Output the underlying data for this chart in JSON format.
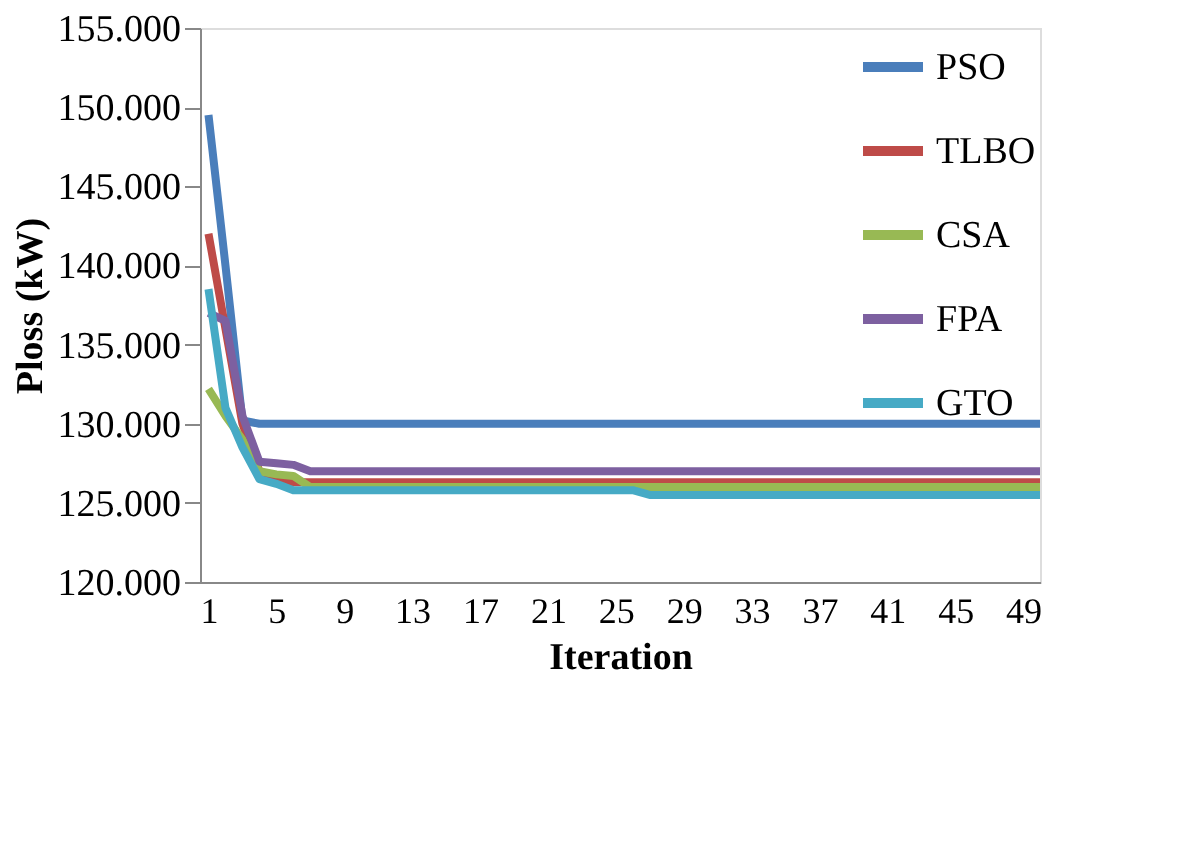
{
  "chart_data": {
    "type": "line",
    "xlabel": "Iteration",
    "ylabel": "Ploss (kW)",
    "x": [
      1,
      2,
      3,
      4,
      5,
      6,
      7,
      8,
      9,
      10,
      11,
      12,
      13,
      14,
      15,
      16,
      17,
      18,
      19,
      20,
      21,
      22,
      23,
      24,
      25,
      26,
      27,
      28,
      29,
      30,
      31,
      32,
      33,
      34,
      35,
      36,
      37,
      38,
      39,
      40,
      41,
      42,
      43,
      44,
      45,
      46,
      47,
      48,
      49,
      50
    ],
    "xlim": [
      0.5,
      50
    ],
    "xticks": [
      1,
      5,
      9,
      13,
      17,
      21,
      25,
      29,
      33,
      37,
      41,
      45,
      49
    ],
    "ylim": [
      120,
      155
    ],
    "yticks": [
      {
        "value": 120,
        "label": "120.000"
      },
      {
        "value": 125,
        "label": "125.000"
      },
      {
        "value": 130,
        "label": "130.000"
      },
      {
        "value": 135,
        "label": "135.000"
      },
      {
        "value": 140,
        "label": "140.000"
      },
      {
        "value": 145,
        "label": "145.000"
      },
      {
        "value": 150,
        "label": "150.000"
      },
      {
        "value": 155,
        "label": "155.000"
      }
    ],
    "grid": false,
    "legend": "top right",
    "marker": "none",
    "line_style": "solid",
    "series": [
      {
        "name": "PSO",
        "color": "#4a7ebb",
        "values": [
          149.5,
          140.0,
          130.2,
          130,
          130,
          130,
          130,
          130,
          130,
          130,
          130,
          130,
          130,
          130,
          130,
          130,
          130,
          130,
          130,
          130,
          130,
          130,
          130,
          130,
          130,
          130,
          130,
          130,
          130,
          130,
          130,
          130,
          130,
          130,
          130,
          130,
          130,
          130,
          130,
          130,
          130,
          130,
          130,
          130,
          130,
          130,
          130,
          130,
          130,
          130
        ]
      },
      {
        "name": "TLBO",
        "color": "#be4b48",
        "values": [
          142.0,
          136.0,
          130.0,
          127.0,
          126.6,
          126.3,
          126.3,
          126.3,
          126.3,
          126.3,
          126.3,
          126.3,
          126.3,
          126.3,
          126.3,
          126.3,
          126.3,
          126.3,
          126.3,
          126.3,
          126.3,
          126.3,
          126.3,
          126.3,
          126.3,
          126.3,
          126.3,
          126.3,
          126.3,
          126.3,
          126.3,
          126.3,
          126.3,
          126.3,
          126.3,
          126.3,
          126.3,
          126.3,
          126.3,
          126.3,
          126.3,
          126.3,
          126.3,
          126.3,
          126.3,
          126.3,
          126.3,
          126.3,
          126.3,
          126.3
        ]
      },
      {
        "name": "CSA",
        "color": "#98b954",
        "values": [
          132.2,
          130.5,
          129.0,
          127.0,
          126.8,
          126.7,
          126.0,
          126.0,
          126.0,
          126.0,
          126.0,
          126.0,
          126.0,
          126.0,
          126.0,
          126.0,
          126.0,
          126.0,
          126.0,
          126.0,
          126.0,
          126.0,
          126.0,
          126.0,
          126.0,
          126.0,
          126.0,
          126.0,
          126.0,
          126.0,
          126.0,
          126.0,
          126.0,
          126.0,
          126.0,
          126.0,
          126.0,
          126.0,
          126.0,
          126.0,
          126.0,
          126.0,
          126.0,
          126.0,
          126.0,
          126.0,
          126.0,
          126.0,
          126.0,
          126.0
        ]
      },
      {
        "name": "FPA",
        "color": "#7d60a0",
        "values": [
          137.0,
          136.5,
          130.5,
          127.6,
          127.5,
          127.4,
          127.0,
          127.0,
          127.0,
          127.0,
          127.0,
          127.0,
          127.0,
          127.0,
          127.0,
          127.0,
          127.0,
          127.0,
          127.0,
          127.0,
          127.0,
          127.0,
          127.0,
          127.0,
          127.0,
          127.0,
          127.0,
          127.0,
          127.0,
          127.0,
          127.0,
          127.0,
          127.0,
          127.0,
          127.0,
          127.0,
          127.0,
          127.0,
          127.0,
          127.0,
          127.0,
          127.0,
          127.0,
          127.0,
          127.0,
          127.0,
          127.0,
          127.0,
          127.0,
          127.0
        ]
      },
      {
        "name": "GTO",
        "color": "#46aac5",
        "values": [
          138.5,
          131.0,
          128.5,
          126.5,
          126.2,
          125.8,
          125.8,
          125.8,
          125.8,
          125.8,
          125.8,
          125.8,
          125.8,
          125.8,
          125.8,
          125.8,
          125.8,
          125.8,
          125.8,
          125.8,
          125.8,
          125.8,
          125.8,
          125.8,
          125.8,
          125.8,
          125.5,
          125.5,
          125.5,
          125.5,
          125.5,
          125.5,
          125.5,
          125.5,
          125.5,
          125.5,
          125.5,
          125.5,
          125.5,
          125.5,
          125.5,
          125.5,
          125.5,
          125.5,
          125.5,
          125.5,
          125.5,
          125.5,
          125.5,
          125.5
        ]
      }
    ]
  }
}
